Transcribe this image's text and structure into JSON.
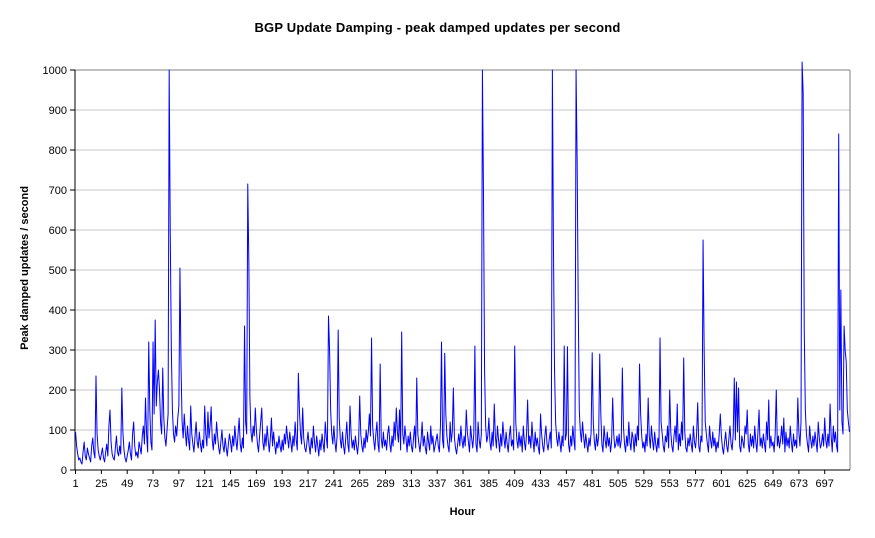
{
  "title": "BGP Update Damping - peak damped updates per second",
  "colors": {
    "series": "#0000ff",
    "gridline": "#c6c6c6",
    "plot_border": "#808080",
    "axis": "#000000",
    "background": "#ffffff",
    "text": "#000000"
  },
  "chart_data": {
    "type": "line",
    "title": "BGP Update Damping - peak damped updates per second",
    "xlabel": "Hour",
    "ylabel": "Peak damped updates / second",
    "x_start": 1,
    "x_count": 720,
    "x_tick_step": 24,
    "x_tick_labels": [
      "1",
      "25",
      "49",
      "73",
      "97",
      "121",
      "145",
      "169",
      "193",
      "217",
      "241",
      "265",
      "289",
      "313",
      "337",
      "361",
      "385",
      "409",
      "433",
      "457",
      "481",
      "505",
      "529",
      "553",
      "577",
      "601",
      "625",
      "649",
      "673",
      "697"
    ],
    "ylim": [
      0,
      1000
    ],
    "y_tick_step": 100,
    "y_tick_labels": [
      "0",
      "100",
      "200",
      "300",
      "400",
      "500",
      "600",
      "700",
      "800",
      "900",
      "1000"
    ],
    "grid": "horizontal",
    "legend": "none",
    "values": [
      95,
      60,
      40,
      25,
      30,
      20,
      15,
      45,
      70,
      35,
      25,
      55,
      40,
      30,
      20,
      60,
      80,
      45,
      30,
      235,
      90,
      50,
      35,
      25,
      40,
      55,
      30,
      20,
      45,
      65,
      35,
      110,
      150,
      70,
      40,
      30,
      25,
      55,
      85,
      45,
      35,
      60,
      40,
      205,
      95,
      50,
      30,
      20,
      35,
      50,
      70,
      40,
      25,
      90,
      120,
      60,
      35,
      45,
      30,
      70,
      55,
      40,
      85,
      110,
      65,
      180,
      90,
      45,
      320,
      150,
      70,
      50,
      320,
      140,
      375,
      160,
      220,
      250,
      200,
      120,
      90,
      255,
      130,
      80,
      60,
      100,
      140,
      1000,
      590,
      300,
      150,
      90,
      70,
      110,
      85,
      130,
      160,
      505,
      260,
      120,
      80,
      140,
      95,
      60,
      110,
      75,
      50,
      160,
      90,
      65,
      45,
      85,
      120,
      70,
      55,
      95,
      65,
      45,
      75,
      55,
      160,
      90,
      60,
      145,
      80,
      110,
      158,
      75,
      50,
      90,
      65,
      120,
      85,
      55,
      40,
      70,
      100,
      60,
      45,
      80,
      55,
      35,
      65,
      90,
      70,
      45,
      85,
      60,
      110,
      75,
      50,
      90,
      130,
      65,
      45,
      80,
      55,
      360,
      120,
      90,
      715,
      520,
      180,
      95,
      70,
      110,
      85,
      155,
      100,
      65,
      45,
      85,
      120,
      155,
      70,
      50,
      90,
      60,
      110,
      75,
      45,
      80,
      130,
      60,
      95,
      65,
      40,
      70,
      55,
      85,
      60,
      45,
      75,
      50,
      90,
      65,
      110,
      80,
      55,
      95,
      70,
      45,
      85,
      60,
      120,
      75,
      50,
      242,
      150,
      90,
      65,
      155,
      80,
      55,
      45,
      70,
      95,
      60,
      40,
      80,
      55,
      110,
      70,
      45,
      85,
      60,
      35,
      75,
      50,
      90,
      65,
      45,
      120,
      80,
      55,
      385,
      300,
      150,
      90,
      65,
      110,
      70,
      45,
      85,
      350,
      130,
      75,
      55,
      95,
      60,
      40,
      80,
      120,
      65,
      45,
      160,
      90,
      55,
      75,
      50,
      85,
      60,
      40,
      70,
      185,
      90,
      60,
      45,
      80,
      55,
      100,
      70,
      95,
      140,
      85,
      330,
      110,
      75,
      50,
      90,
      120,
      65,
      45,
      265,
      80,
      55,
      95,
      60,
      75,
      50,
      90,
      110,
      65,
      45,
      85,
      60,
      120,
      75,
      155,
      95,
      70,
      150,
      50,
      345,
      90,
      65,
      110,
      80,
      45,
      85,
      60,
      95,
      60,
      45,
      80,
      110,
      55,
      230,
      90,
      65,
      45,
      75,
      120,
      60,
      85,
      55,
      40,
      95,
      70,
      50,
      110,
      65,
      85,
      45,
      60,
      75,
      90,
      60,
      45,
      110,
      320,
      75,
      55,
      292,
      140,
      85,
      60,
      45,
      120,
      70,
      95,
      205,
      80,
      55,
      40,
      65,
      90,
      60,
      110,
      75,
      55,
      85,
      60,
      150,
      95,
      70,
      45,
      110,
      80,
      55,
      90,
      310,
      65,
      45,
      120,
      75,
      55,
      90,
      1000,
      690,
      250,
      110,
      70,
      85,
      130,
      70,
      50,
      95,
      60,
      165,
      85,
      55,
      110,
      75,
      45,
      90,
      60,
      120,
      80,
      55,
      95,
      65,
      45,
      85,
      110,
      60,
      75,
      50,
      310,
      120,
      75,
      55,
      95,
      60,
      85,
      45,
      110,
      70,
      50,
      90,
      175,
      65,
      85,
      55,
      120,
      75,
      45,
      95,
      60,
      80,
      55,
      40,
      140,
      90,
      60,
      45,
      85,
      110,
      65,
      50,
      75,
      95,
      55,
      1000,
      560,
      250,
      120,
      80,
      60,
      95,
      70,
      45,
      85,
      60,
      310,
      75,
      90,
      308,
      65,
      45,
      85,
      60,
      110,
      75,
      50,
      1000,
      775,
      420,
      150,
      95,
      70,
      120,
      85,
      55,
      90,
      65,
      45,
      80,
      60,
      95,
      293,
      120,
      70,
      50,
      90,
      60,
      85,
      290,
      140,
      65,
      45,
      110,
      75,
      55,
      95,
      60,
      80,
      45,
      70,
      180,
      90,
      55,
      65,
      85,
      60,
      90,
      55,
      75,
      255,
      110,
      65,
      45,
      85,
      60,
      120,
      70,
      50,
      95,
      80,
      45,
      90,
      60,
      110,
      75,
      265,
      140,
      85,
      55,
      70,
      45,
      90,
      60,
      180,
      85,
      55,
      110,
      75,
      50,
      95,
      65,
      45,
      80,
      55,
      330,
      120,
      90,
      60,
      45,
      85,
      70,
      110,
      55,
      200,
      95,
      60,
      45,
      85,
      110,
      70,
      165,
      50,
      90,
      60,
      120,
      75,
      280,
      95,
      55,
      45,
      80,
      60,
      90,
      65,
      45,
      110,
      70,
      55,
      90,
      168,
      60,
      45,
      85,
      70,
      575,
      300,
      120,
      90,
      65,
      45,
      110,
      75,
      55,
      95,
      60,
      80,
      45,
      70,
      55,
      90,
      140,
      85,
      55,
      40,
      70,
      95,
      60,
      45,
      80,
      110,
      65,
      50,
      90,
      230,
      75,
      220,
      95,
      205,
      60,
      45,
      85,
      70,
      55,
      110,
      90,
      150,
      65,
      45,
      90,
      60,
      85,
      55,
      110,
      70,
      45,
      95,
      150,
      60,
      80,
      55,
      90,
      65,
      45,
      120,
      75,
      175,
      55,
      85,
      60,
      70,
      45,
      90,
      200,
      60,
      85,
      55,
      75,
      110,
      65,
      130,
      45,
      95,
      60,
      80,
      55,
      110,
      70,
      45,
      90,
      60,
      75,
      55,
      180,
      95,
      60,
      120,
      1020,
      940,
      350,
      150,
      90,
      65,
      45,
      110,
      75,
      55,
      85,
      60,
      95,
      70,
      45,
      120,
      80,
      55,
      65,
      90,
      60,
      130,
      75,
      55,
      90,
      60,
      165,
      85,
      45,
      110,
      70,
      95,
      60,
      45,
      840,
      150,
      450,
      120,
      90,
      360,
      300,
      270,
      150,
      120,
      95
    ]
  }
}
